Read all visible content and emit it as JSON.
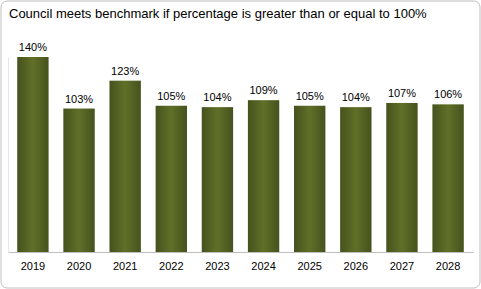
{
  "chart_data": {
    "type": "bar",
    "title": "Council meets benchmark if percentage is greater than or equal to 100%",
    "categories": [
      "2019",
      "2020",
      "2021",
      "2022",
      "2023",
      "2024",
      "2025",
      "2026",
      "2027",
      "2028"
    ],
    "values": [
      140,
      103,
      123,
      105,
      104,
      109,
      105,
      104,
      107,
      106
    ],
    "value_labels": [
      "140%",
      "103%",
      "123%",
      "105%",
      "104%",
      "109%",
      "105%",
      "104%",
      "107%",
      "106%"
    ],
    "color": "#566524",
    "ylim": [
      0,
      140
    ],
    "data_labels": true,
    "tick_labels": "x",
    "grid": false
  }
}
